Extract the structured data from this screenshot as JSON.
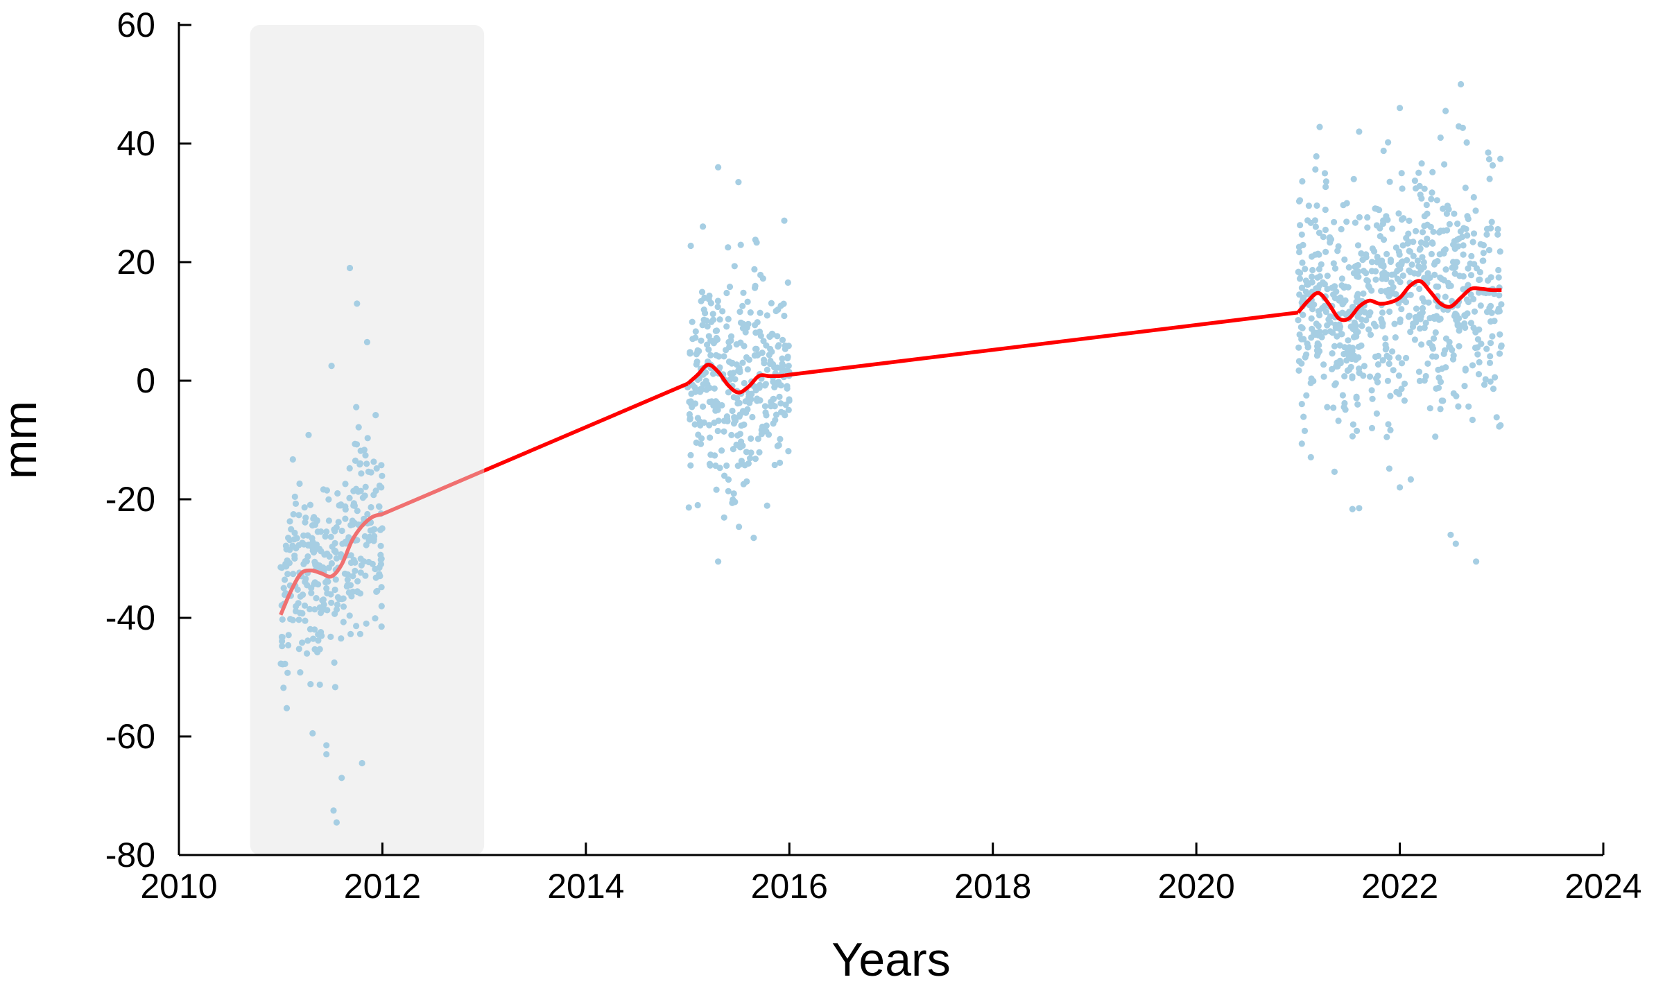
{
  "chart_data": {
    "type": "scatter",
    "title": "",
    "xlabel": "Years",
    "ylabel": "mm",
    "xlim": [
      2010,
      2024
    ],
    "ylim": [
      -80,
      60
    ],
    "xticks": [
      "2010",
      "2012",
      "2014",
      "2016",
      "2018",
      "2020",
      "2022",
      "2024"
    ],
    "yticks": [
      "60",
      "40",
      "20",
      "0",
      "-20",
      "-40",
      "-60",
      "-80"
    ],
    "grid": false,
    "legend": "none",
    "shaded_region": {
      "x_start": 2010.7,
      "x_end": 2013.0,
      "color": "#f2f2f2"
    },
    "colors": {
      "observations": "#a6cee3",
      "trend": "#ff0000",
      "trend_in_shade": "#f07070",
      "axis": "#000000"
    },
    "series": [
      {
        "role": "observations",
        "kind": "scatter",
        "clusters": [
          {
            "x_range": [
              2011.0,
              2012.0
            ],
            "center_trend": "follows trend",
            "spread_sd": 8.5,
            "n": 330,
            "outliers": [
              [
                2011.45,
                -61.5
              ],
              [
                2011.45,
                -63.0
              ],
              [
                2011.6,
                -67.0
              ],
              [
                2011.8,
                -64.5
              ],
              [
                2011.52,
                -72.5
              ],
              [
                2011.55,
                -74.5
              ],
              [
                2011.68,
                19.0
              ],
              [
                2011.75,
                13.0
              ],
              [
                2011.85,
                6.5
              ],
              [
                2011.5,
                2.5
              ]
            ]
          },
          {
            "x_range": [
              2015.0,
              2016.0
            ],
            "center_trend": "follows trend",
            "spread_sd": 9.0,
            "n": 360,
            "outliers": [
              [
                2015.3,
                36.0
              ],
              [
                2015.5,
                33.5
              ],
              [
                2015.95,
                27.0
              ],
              [
                2015.15,
                26.0
              ],
              [
                2015.3,
                -30.5
              ],
              [
                2015.65,
                -26.5
              ],
              [
                2015.1,
                -21.0
              ]
            ]
          },
          {
            "x_range": [
              2021.0,
              2023.0
            ],
            "center_trend": "follows trend",
            "spread_sd": 10.0,
            "n": 720,
            "outliers": [
              [
                2022.6,
                50.0
              ],
              [
                2022.0,
                46.0
              ],
              [
                2022.45,
                45.5
              ],
              [
                2021.6,
                42.0
              ],
              [
                2022.4,
                41.0
              ],
              [
                2022.5,
                -26.0
              ],
              [
                2022.55,
                -27.5
              ],
              [
                2022.75,
                -30.5
              ],
              [
                2021.6,
                -21.5
              ],
              [
                2022.0,
                -18.0
              ]
            ]
          }
        ]
      },
      {
        "role": "trend",
        "kind": "line",
        "x": [
          2011.0,
          2011.1,
          2011.2,
          2011.3,
          2011.4,
          2011.5,
          2011.6,
          2011.7,
          2011.8,
          2011.9,
          2012.0,
          2015.0,
          2015.1,
          2015.2,
          2015.3,
          2015.4,
          2015.5,
          2015.6,
          2015.7,
          2015.8,
          2015.9,
          2016.0,
          2021.0,
          2021.1,
          2021.2,
          2021.3,
          2021.4,
          2021.5,
          2021.6,
          2021.7,
          2021.8,
          2021.9,
          2022.0,
          2022.1,
          2022.2,
          2022.3,
          2022.4,
          2022.5,
          2022.6,
          2022.7,
          2022.8,
          2022.9,
          2023.0
        ],
        "y": [
          -39.5,
          -35.5,
          -32.5,
          -32.0,
          -32.5,
          -33.0,
          -31.0,
          -27.0,
          -24.5,
          -23.0,
          -22.5,
          -0.5,
          1.0,
          2.7,
          1.5,
          -0.8,
          -2.0,
          -1.0,
          0.8,
          0.8,
          0.8,
          1.0,
          11.5,
          13.5,
          14.8,
          13.0,
          10.5,
          10.5,
          12.5,
          13.5,
          13.0,
          13.2,
          14.0,
          16.0,
          16.8,
          15.0,
          13.0,
          12.5,
          14.0,
          15.5,
          15.5,
          15.3,
          15.3
        ]
      }
    ]
  }
}
